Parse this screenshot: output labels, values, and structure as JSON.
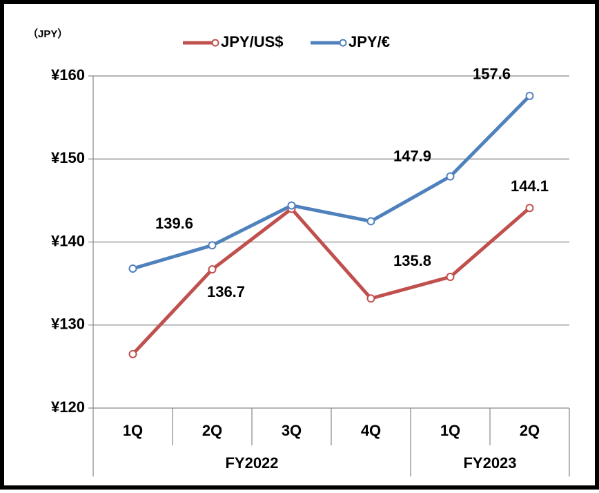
{
  "chart_data": {
    "type": "line",
    "y_unit_label": "（JPY）",
    "categories": [
      "1Q",
      "2Q",
      "3Q",
      "4Q",
      "1Q",
      "2Q"
    ],
    "groups": [
      {
        "label": "FY2022",
        "categories": [
          0,
          1,
          2,
          3
        ]
      },
      {
        "label": "FY2023",
        "categories": [
          4,
          5
        ]
      }
    ],
    "series": [
      {
        "name": "JPY/US$",
        "color": "#c0504d",
        "values": [
          126.5,
          136.7,
          144.0,
          133.2,
          135.8,
          144.1
        ],
        "value_labels": [
          null,
          "136.7",
          null,
          null,
          "135.8",
          "144.1"
        ]
      },
      {
        "name": "JPY/€",
        "color": "#4f81bd",
        "values": [
          136.8,
          139.6,
          144.4,
          142.5,
          147.9,
          157.6
        ],
        "value_labels": [
          null,
          "139.6",
          null,
          null,
          "147.9",
          "157.6"
        ]
      }
    ],
    "ylim": [
      120,
      160
    ],
    "yticks": [
      {
        "value": 120,
        "label": "¥120"
      },
      {
        "value": 130,
        "label": "¥130"
      },
      {
        "value": 140,
        "label": "¥140"
      },
      {
        "value": 150,
        "label": "¥150"
      },
      {
        "value": 160,
        "label": "¥160"
      }
    ],
    "grid": true,
    "legend": "top"
  }
}
